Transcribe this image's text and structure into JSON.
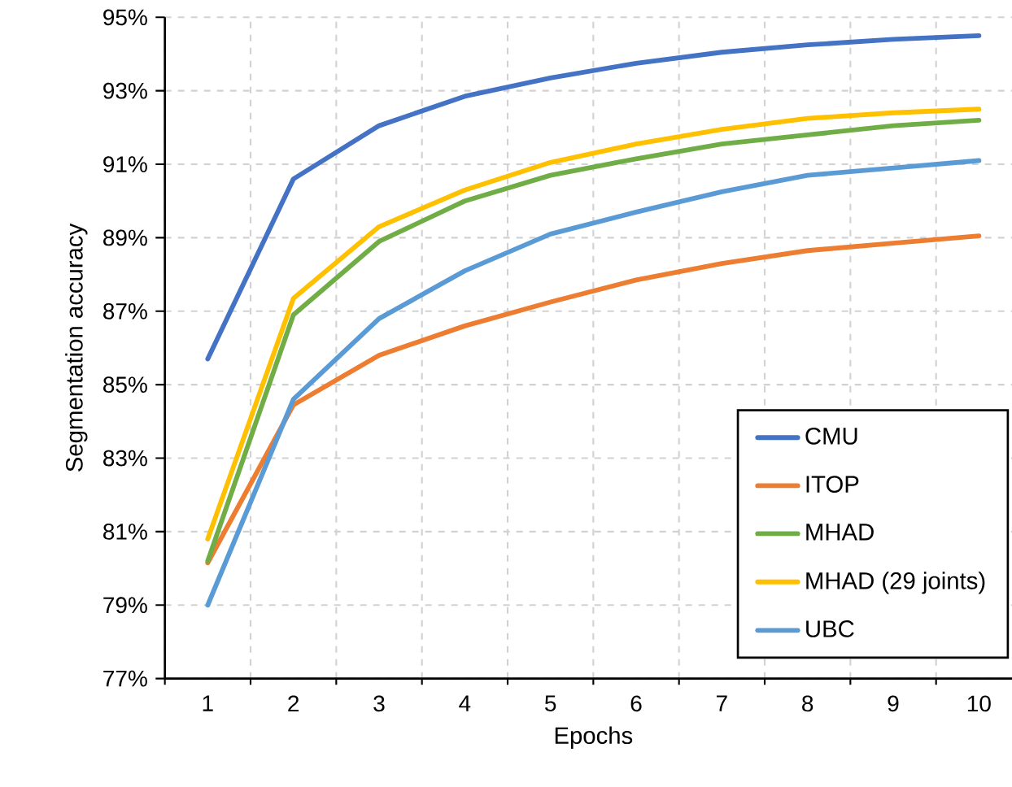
{
  "chart_data": {
    "type": "line",
    "xlabel": "Epochs",
    "ylabel": "Segmentation accuracy",
    "categories": [
      "1",
      "2",
      "3",
      "4",
      "5",
      "6",
      "7",
      "8",
      "9",
      "10"
    ],
    "series": [
      {
        "name": "CMU",
        "color": "#4472c4",
        "values": [
          85.7,
          90.6,
          92.05,
          92.85,
          93.35,
          93.75,
          94.05,
          94.25,
          94.4,
          94.5
        ]
      },
      {
        "name": "ITOP",
        "color": "#ed7d31",
        "values": [
          80.15,
          84.45,
          85.8,
          86.6,
          87.25,
          87.85,
          88.3,
          88.65,
          88.85,
          89.05
        ]
      },
      {
        "name": "MHAD",
        "color": "#70ad47",
        "values": [
          80.2,
          86.9,
          88.9,
          90.0,
          90.7,
          91.15,
          91.55,
          91.8,
          92.05,
          92.2
        ]
      },
      {
        "name": "MHAD (29 joints)",
        "color": "#ffc000",
        "values": [
          80.8,
          87.35,
          89.3,
          90.3,
          91.05,
          91.55,
          91.95,
          92.25,
          92.4,
          92.5
        ]
      },
      {
        "name": "UBC",
        "color": "#5b9bd5",
        "values": [
          79.0,
          84.6,
          86.8,
          88.1,
          89.1,
          89.7,
          90.25,
          90.7,
          90.9,
          91.1
        ]
      }
    ],
    "ylim": [
      77,
      95
    ],
    "yticks": [
      {
        "value": 77,
        "label": "77%"
      },
      {
        "value": 79,
        "label": "79%"
      },
      {
        "value": 81,
        "label": "81%"
      },
      {
        "value": 83,
        "label": "83%"
      },
      {
        "value": 85,
        "label": "85%"
      },
      {
        "value": 87,
        "label": "87%"
      },
      {
        "value": 89,
        "label": "89%"
      },
      {
        "value": 91,
        "label": "91%"
      },
      {
        "value": 93,
        "label": "93%"
      },
      {
        "value": 95,
        "label": "95%"
      }
    ],
    "grid": true,
    "legend": "bottom right",
    "marker": "none",
    "line_style": "solid"
  }
}
